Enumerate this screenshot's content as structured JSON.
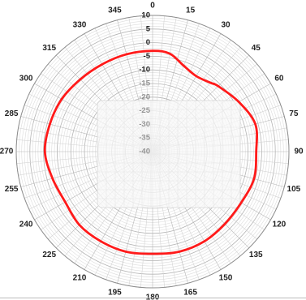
{
  "chart_data": {
    "type": "polar-line",
    "angle_unit": "degrees",
    "angle_direction": "clockwise",
    "zero_at": "top",
    "angle_tick_labels": [
      "0",
      "15",
      "30",
      "45",
      "60",
      "75",
      "90",
      "105",
      "120",
      "135",
      "150",
      "165",
      "180",
      "195",
      "210",
      "225",
      "240",
      "255",
      "270",
      "285",
      "300",
      "315",
      "330",
      "345"
    ],
    "radial_tick_labels": [
      "10",
      "5",
      "0",
      "-5",
      "-10",
      "-15",
      "-20",
      "-25",
      "-30",
      "-35",
      "-40"
    ],
    "radial_range_db": [
      -40,
      10
    ],
    "grid": true,
    "series": [
      {
        "color": "#ff1a1a",
        "points": [
          {
            "angle": 0,
            "value": -3
          },
          {
            "angle": 10,
            "value": -3.5
          },
          {
            "angle": 20,
            "value": -6.5
          },
          {
            "angle": 30,
            "value": -8
          },
          {
            "angle": 40,
            "value": -7
          },
          {
            "angle": 45,
            "value": -6
          },
          {
            "angle": 60,
            "value": -3.5
          },
          {
            "angle": 75,
            "value": -1
          },
          {
            "angle": 90,
            "value": -2
          },
          {
            "angle": 105,
            "value": -1.5
          },
          {
            "angle": 120,
            "value": -2.5
          },
          {
            "angle": 135,
            "value": -2.5
          },
          {
            "angle": 150,
            "value": -2
          },
          {
            "angle": 165,
            "value": -2
          },
          {
            "angle": 180,
            "value": -2.5
          },
          {
            "angle": 195,
            "value": -2
          },
          {
            "angle": 210,
            "value": -2
          },
          {
            "angle": 225,
            "value": -2
          },
          {
            "angle": 240,
            "value": -3
          },
          {
            "angle": 255,
            "value": -2
          },
          {
            "angle": 270,
            "value": -0.5
          },
          {
            "angle": 285,
            "value": -1
          },
          {
            "angle": 300,
            "value": -1.5
          },
          {
            "angle": 315,
            "value": -2.5
          },
          {
            "angle": 330,
            "value": -3
          },
          {
            "angle": 345,
            "value": -3
          }
        ]
      }
    ]
  }
}
